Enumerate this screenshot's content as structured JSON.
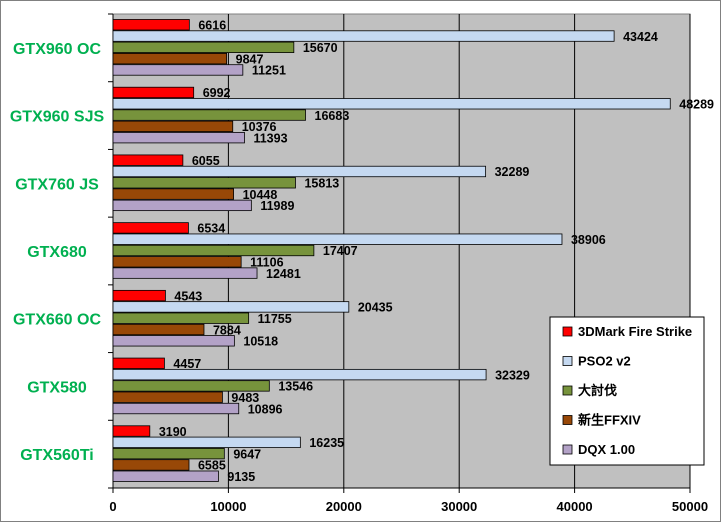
{
  "chart_data": {
    "type": "bar",
    "orientation": "horizontal",
    "categories": [
      "GTX960 OC",
      "GTX960 SJS",
      "GTX760 JS",
      "GTX680",
      "GTX660 OC",
      "GTX580",
      "GTX560Ti"
    ],
    "series": [
      {
        "name": "3DMark Fire Strike",
        "color": "#ff0000",
        "values": [
          6616,
          6992,
          6055,
          6534,
          4543,
          4457,
          3190
        ]
      },
      {
        "name": "PSO2 v2",
        "color": "#c5d9f1",
        "values": [
          43424,
          48289,
          32289,
          38906,
          20435,
          32329,
          16235
        ]
      },
      {
        "name": "大討伐",
        "color": "#77933c",
        "values": [
          15670,
          16683,
          15813,
          17407,
          11755,
          13546,
          9647
        ]
      },
      {
        "name": "新生FFXIV",
        "color": "#984807",
        "values": [
          9847,
          10376,
          10448,
          11106,
          7884,
          9483,
          6585
        ]
      },
      {
        "name": "DQX 1.00",
        "color": "#b3a2c7",
        "values": [
          11251,
          11393,
          11989,
          12481,
          10518,
          10896,
          9135
        ]
      }
    ],
    "xlim": [
      0,
      50000
    ],
    "xticks": [
      "0",
      "10000",
      "20000",
      "30000",
      "40000",
      "50000"
    ],
    "grid": true,
    "legend_position": "right",
    "colors": {
      "category_label": "#00b050",
      "plot_background": "#c0c0c0"
    }
  }
}
